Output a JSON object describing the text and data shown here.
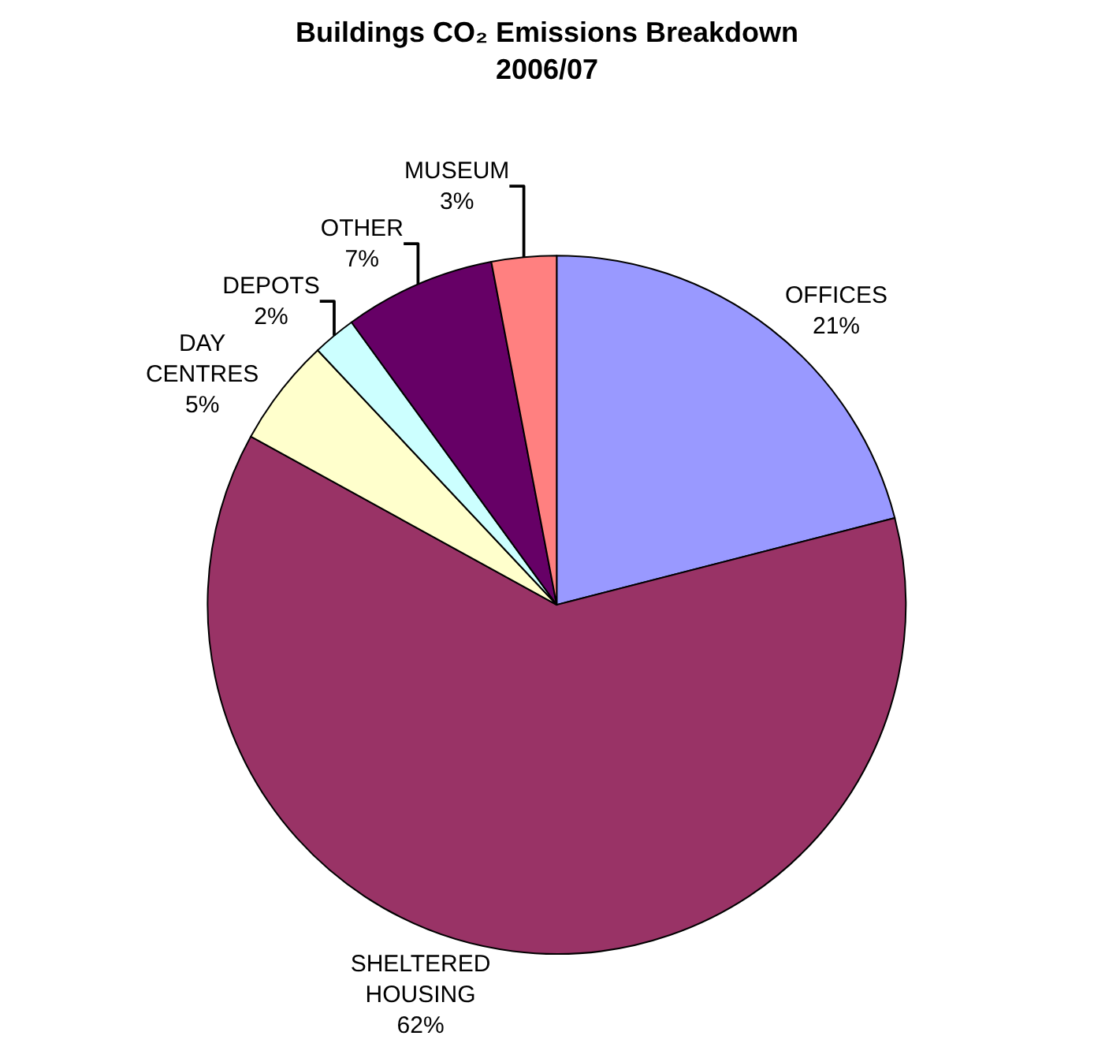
{
  "chart_data": {
    "type": "pie",
    "title": "Buildings CO₂ Emissions Breakdown",
    "subtitle": "2006/07",
    "categories": [
      "OFFICES",
      "SHELTERED HOUSING",
      "DAY CENTRES",
      "DEPOTS",
      "OTHER",
      "MUSEUM"
    ],
    "values": [
      21,
      62,
      5,
      2,
      7,
      3
    ],
    "value_labels": [
      "21%",
      "62%",
      "5%",
      "2%",
      "7%",
      "3%"
    ],
    "colors": [
      "#9999ff",
      "#993366",
      "#ffffcc",
      "#ccffff",
      "#660066",
      "#ff8080"
    ],
    "legend": false
  }
}
